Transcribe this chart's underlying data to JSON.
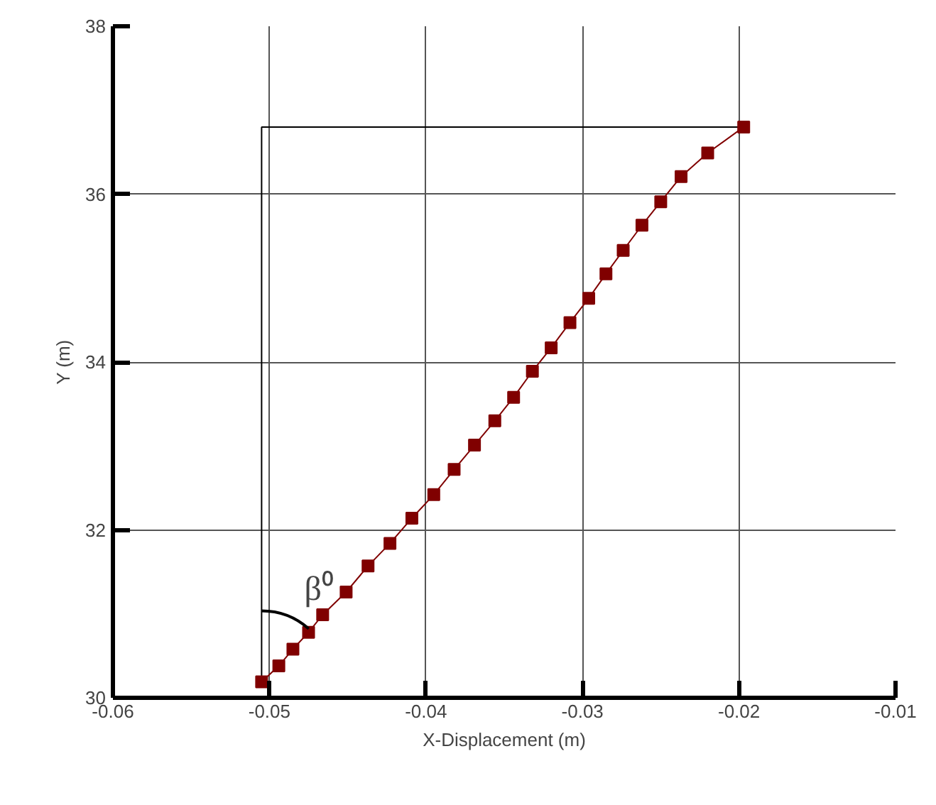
{
  "chart_data": {
    "type": "line",
    "xlabel": "X-Displacement (m)",
    "ylabel": "Y (m)",
    "x": [
      -0.0505,
      -0.0494,
      -0.0485,
      -0.0475,
      -0.0466,
      -0.0451,
      -0.0437,
      -0.0423,
      -0.0409,
      -0.0395,
      -0.0382,
      -0.0369,
      -0.0356,
      -0.0344,
      -0.0332,
      -0.032,
      -0.0308,
      -0.0296,
      -0.0285,
      -0.0274,
      -0.0262,
      -0.025,
      -0.0237,
      -0.022,
      -0.0197
    ],
    "series": [
      {
        "color": "#800000",
        "values": [
          30.19,
          30.38,
          30.58,
          30.78,
          30.99,
          31.26,
          31.57,
          31.84,
          32.14,
          32.42,
          32.72,
          33.01,
          33.3,
          33.58,
          33.89,
          34.17,
          34.47,
          34.76,
          35.05,
          35.33,
          35.63,
          35.91,
          36.21,
          36.49,
          36.8
        ]
      }
    ],
    "xlim": [
      -0.06,
      -0.01
    ],
    "xticks": [
      -0.06,
      -0.05,
      -0.04,
      -0.03,
      -0.02,
      -0.01
    ],
    "ylim": [
      30,
      38
    ],
    "yticks": [
      30,
      32,
      34,
      36,
      38
    ],
    "annotations": [
      "β⁰"
    ],
    "grid": true,
    "marker": "square",
    "line_style": "solid"
  }
}
